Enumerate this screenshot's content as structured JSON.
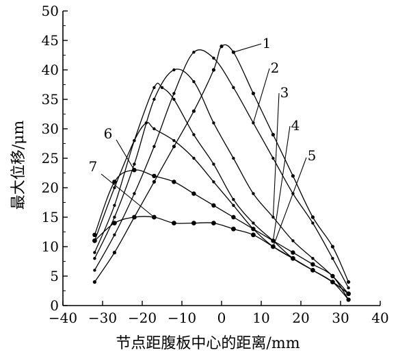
{
  "chart_data": {
    "type": "line",
    "xlabel": "节点距腹板中心的距离/mm",
    "ylabel": "最大位移/μm",
    "xlim": [
      -40,
      40
    ],
    "ylim": [
      0,
      50
    ],
    "xticks": [
      -40,
      -30,
      -20,
      -10,
      0,
      10,
      20,
      30,
      40
    ],
    "yticks": [
      0,
      5,
      10,
      15,
      20,
      25,
      30,
      35,
      40,
      45,
      50
    ],
    "grid": false,
    "series": [
      {
        "name": "1",
        "x": [
          -32,
          -27,
          -22,
          -17,
          -12,
          -7,
          -2,
          0,
          3,
          8,
          13,
          18,
          23,
          28,
          32
        ],
        "y": [
          4,
          9,
          15,
          21,
          27,
          33,
          40,
          44,
          43,
          36,
          29,
          22,
          15,
          10,
          4
        ]
      },
      {
        "name": "2",
        "x": [
          -32,
          -27,
          -22,
          -17,
          -12,
          -7,
          -2,
          3,
          8,
          13,
          18,
          23,
          28,
          32
        ],
        "y": [
          6,
          12,
          19,
          27,
          36,
          43,
          42,
          37,
          31,
          25,
          19,
          14,
          8,
          3
        ]
      },
      {
        "name": "3",
        "x": [
          -32,
          -27,
          -22,
          -17,
          -12,
          -7,
          -2,
          3,
          8,
          13,
          18,
          23,
          28,
          32
        ],
        "y": [
          8,
          15,
          24,
          35,
          40,
          38,
          31,
          25,
          19,
          15,
          11,
          8,
          5,
          2
        ]
      },
      {
        "name": "4",
        "x": [
          -32,
          -27,
          -22,
          -17,
          -15,
          -12,
          -7,
          -2,
          3,
          8,
          13,
          18,
          23,
          28,
          32
        ],
        "y": [
          9,
          17,
          28,
          37,
          37,
          35,
          29,
          24,
          18,
          14,
          11,
          8,
          6,
          4,
          2
        ]
      },
      {
        "name": "5",
        "x": [
          -32,
          -27,
          -22,
          -19,
          -17,
          -12,
          -7,
          -2,
          3,
          8,
          13,
          18,
          23,
          28,
          32
        ],
        "y": [
          11,
          20,
          28,
          31,
          30,
          28,
          25,
          21,
          17,
          13,
          10,
          8,
          6,
          4,
          1
        ]
      },
      {
        "name": "6",
        "x": [
          -32,
          -27,
          -22,
          -17,
          -12,
          -7,
          -2,
          3,
          8,
          13,
          18,
          23,
          28,
          32
        ],
        "y": [
          12,
          21,
          23,
          22,
          21,
          19,
          17,
          15,
          13,
          11,
          9,
          7,
          5,
          1
        ]
      },
      {
        "name": "7",
        "x": [
          -32,
          -27,
          -22,
          -17,
          -12,
          -7,
          -2,
          3,
          8,
          13,
          18,
          23,
          28,
          32
        ],
        "y": [
          11,
          14,
          15,
          15,
          14,
          14,
          14,
          13,
          12,
          10,
          8,
          6,
          4,
          2
        ]
      }
    ]
  }
}
